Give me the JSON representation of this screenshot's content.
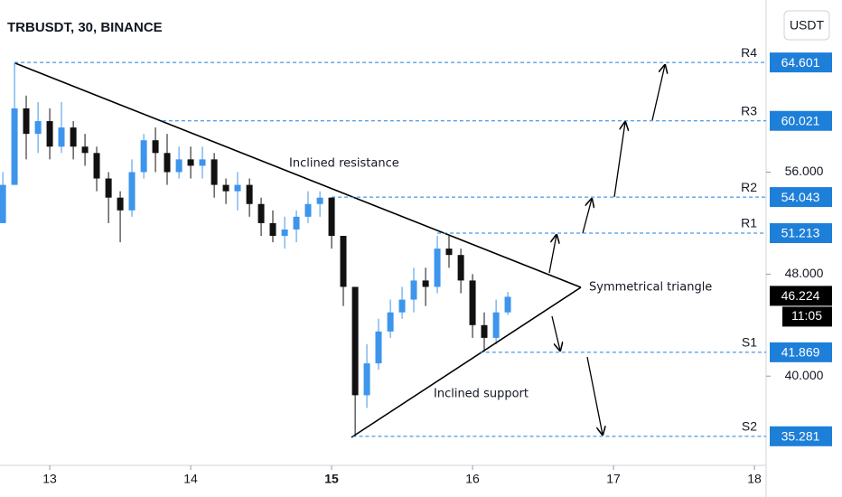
{
  "chart_data": {
    "type": "candlestick",
    "title": "TRBUSDT, 30, BINANCE",
    "currency_button": "USDT",
    "up_color": "#3d95ec",
    "down_color": "#111111",
    "x": [
      12.667,
      12.75,
      12.833,
      12.917,
      13.0,
      13.083,
      13.167,
      13.25,
      13.333,
      13.417,
      13.5,
      13.583,
      13.667,
      13.75,
      13.833,
      13.917,
      14.0,
      14.083,
      14.167,
      14.25,
      14.333,
      14.417,
      14.5,
      14.583,
      14.667,
      14.75,
      14.833,
      14.917,
      15.0,
      15.083,
      15.167,
      15.25,
      15.333,
      15.417,
      15.5,
      15.583,
      15.667,
      15.75,
      15.833,
      15.917,
      16.0,
      16.083,
      16.167,
      16.25
    ],
    "open": [
      52,
      55,
      61,
      59,
      60,
      58,
      59.5,
      58,
      57.5,
      55.5,
      54,
      53,
      56,
      58.5,
      57.5,
      56,
      57,
      56.5,
      57,
      55,
      54.5,
      55,
      53.5,
      52,
      51,
      51.5,
      52.5,
      53.5,
      54,
      51,
      47,
      38.5,
      41,
      43.5,
      45,
      46,
      47.5,
      47,
      50,
      49.5,
      47.5,
      44,
      43,
      45
    ],
    "high": [
      56,
      64.6,
      62,
      61.5,
      61,
      61.5,
      60,
      59,
      58,
      56,
      54.5,
      57,
      59,
      59.5,
      59,
      58,
      58,
      58,
      57.5,
      55.5,
      56,
      55.5,
      54,
      53,
      52.5,
      53,
      54.5,
      54.5,
      54,
      51,
      47,
      42.5,
      44.5,
      46,
      47,
      48.5,
      48.5,
      51,
      51,
      50,
      48,
      45,
      46,
      46.6
    ],
    "low": [
      52,
      55,
      57,
      57.5,
      57,
      57.5,
      57,
      56.5,
      54.5,
      52,
      50.5,
      52.5,
      55.5,
      56,
      55,
      55.5,
      55.5,
      55.5,
      54,
      53.5,
      53,
      52.5,
      51,
      50.5,
      50,
      50.5,
      52,
      52.5,
      50,
      45.5,
      35.28,
      37.5,
      40.5,
      43,
      44.5,
      45,
      45.5,
      46.5,
      48.5,
      46.5,
      43,
      41.9,
      42.5,
      44.8
    ],
    "close": [
      55,
      61,
      59,
      60,
      58,
      59.5,
      58,
      57.5,
      55.5,
      54,
      53,
      56,
      58.5,
      57.5,
      56,
      57,
      56.5,
      57,
      55,
      54.5,
      55,
      53.5,
      52,
      51,
      51.5,
      52.5,
      53.5,
      54,
      51,
      47,
      38.5,
      41,
      43.5,
      45,
      46,
      47.5,
      47,
      50,
      49.5,
      47.5,
      44,
      43,
      45,
      46.224
    ],
    "xlim": [
      12.647,
      18.083
    ],
    "xticks": [
      13,
      14,
      15,
      16,
      17,
      18
    ],
    "xtick_bold": 15,
    "ylim": [
      33,
      69.5
    ],
    "yticks": [
      {
        "value": 40,
        "label": "40.000"
      },
      {
        "value": 48,
        "label": "48.000"
      },
      {
        "value": 56,
        "label": "56.000"
      }
    ],
    "levels": [
      {
        "name": "R4",
        "value": 64.601,
        "from": 12.75
      },
      {
        "name": "R3",
        "value": 60.021,
        "from": 13.8
      },
      {
        "name": "R2",
        "value": 54.043,
        "from": 15.0
      },
      {
        "name": "R1",
        "value": 51.213,
        "from": 15.75
      },
      {
        "name": "S1",
        "value": 41.869,
        "from": 16.05
      },
      {
        "name": "S2",
        "value": 35.281,
        "from": 15.15
      }
    ],
    "level_color": "#1e7fd8",
    "last_price": 46.224,
    "countdown": "11:05",
    "annotations": [
      "Inclined resistance",
      "Inclined support",
      "Symmetrical triangle"
    ]
  }
}
